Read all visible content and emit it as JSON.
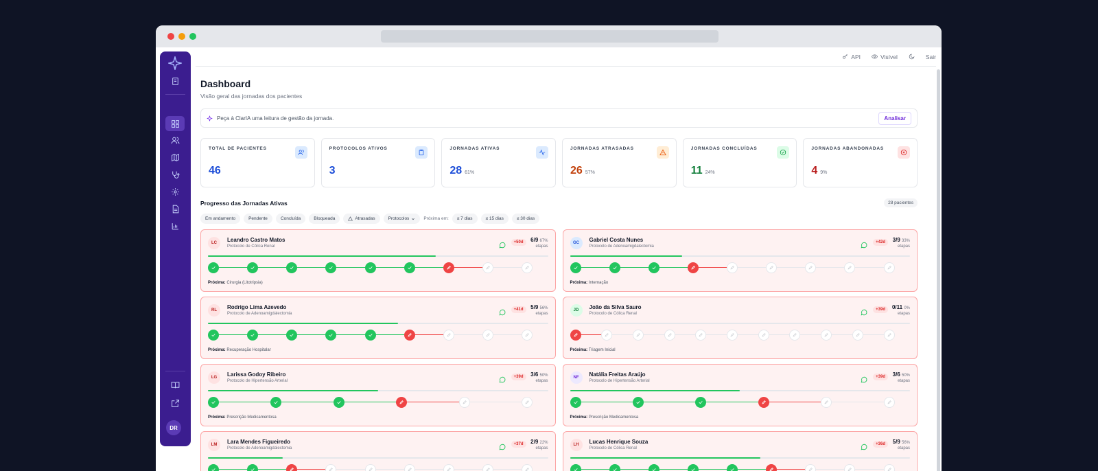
{
  "topnav": {
    "api": "API",
    "visibility": "Visível",
    "logout": "Sair"
  },
  "user": {
    "initials": "DR"
  },
  "header": {
    "title": "Dashboard",
    "subtitle": "Visão geral das jornadas dos pacientes"
  },
  "ai": {
    "prompt": "Peça à ClarIA uma leitura de gestão da jornada.",
    "button": "Analisar"
  },
  "stats": [
    {
      "label": "TOTAL DE PACIENTES",
      "value": "46",
      "pct": "",
      "color": "#1d4ed8",
      "icon": "users-icon"
    },
    {
      "label": "PROTOCOLOS ATIVOS",
      "value": "3",
      "pct": "",
      "color": "#1d4ed8",
      "icon": "clipboard-icon"
    },
    {
      "label": "JORNADAS ATIVAS",
      "value": "28",
      "pct": "61%",
      "color": "#1d4ed8",
      "icon": "activity-icon"
    },
    {
      "label": "JORNADAS ATRASADAS",
      "value": "26",
      "pct": "57%",
      "color": "#c2410c",
      "icon": "alert-icon"
    },
    {
      "label": "JORNADAS CONCLUÍDAS",
      "value": "11",
      "pct": "24%",
      "color": "#15803d",
      "icon": "check-circle-icon"
    },
    {
      "label": "JORNADAS ABANDONADAS",
      "value": "4",
      "pct": "9%",
      "color": "#b91c1c",
      "icon": "x-circle-icon"
    }
  ],
  "section": {
    "title": "Progresso das Jornadas Ativas",
    "count": "28 pacientes"
  },
  "filters": {
    "chips": [
      "Em andamento",
      "Pendente",
      "Concluída",
      "Bloqueada",
      "Atrasadas",
      "Protocolos"
    ],
    "next_label": "Próxima em:",
    "ranges": [
      "≤ 7 dias",
      "≤ 15 dias",
      "≤ 30 dias"
    ]
  },
  "next_prefix": "Próxima:",
  "steps_label": "etapas",
  "patients": [
    {
      "initials": "LC",
      "name": "Leandro Castro Matos",
      "protocol": "Protocolo de Cólica Renal",
      "days": "+50d",
      "steps": "6/9",
      "pct": "67%",
      "progress": 0.67,
      "next": "Cirurgia (Litotripsia)",
      "nodes": [
        "done",
        "done",
        "done",
        "done",
        "done",
        "done",
        "cur",
        "pend",
        "pend"
      ],
      "avatar_bg": "#fee2e2",
      "avatar_fg": "#b91c1c"
    },
    {
      "initials": "GC",
      "name": "Gabriel Costa Nunes",
      "protocol": "Protocolo de Adenoamigdalectomia",
      "days": "+42d",
      "steps": "3/9",
      "pct": "33%",
      "progress": 0.33,
      "next": "Internação",
      "nodes": [
        "done",
        "done",
        "done",
        "cur",
        "pend",
        "pend",
        "pend",
        "pend",
        "pend"
      ],
      "avatar_bg": "#dbeafe",
      "avatar_fg": "#1d4ed8"
    },
    {
      "initials": "RL",
      "name": "Rodrigo Lima Azevedo",
      "protocol": "Protocolo de Adenoamigdalectomia",
      "days": "+41d",
      "steps": "5/9",
      "pct": "56%",
      "progress": 0.56,
      "next": "Recuperação Hospitalar",
      "nodes": [
        "done",
        "done",
        "done",
        "done",
        "done",
        "cur",
        "pend",
        "pend",
        "pend"
      ],
      "avatar_bg": "#fee2e2",
      "avatar_fg": "#b91c1c"
    },
    {
      "initials": "JD",
      "name": "João da Silva Sauro",
      "protocol": "Protocolo de Cólica Renal",
      "days": "+39d",
      "steps": "0/11",
      "pct": "0%",
      "progress": 0.0,
      "next": "Triagem Inicial",
      "nodes": [
        "cur",
        "pend",
        "pend",
        "pend",
        "pend",
        "pend",
        "pend",
        "pend",
        "pend",
        "pend",
        "pend"
      ],
      "avatar_bg": "#dcfce7",
      "avatar_fg": "#15803d"
    },
    {
      "initials": "LG",
      "name": "Larissa Godoy Ribeiro",
      "protocol": "Protocolo de Hipertensão Arterial",
      "days": "+39d",
      "steps": "3/6",
      "pct": "50%",
      "progress": 0.5,
      "next": "Prescrição Medicamentosa",
      "nodes": [
        "done",
        "done",
        "done",
        "cur",
        "pend",
        "pend"
      ],
      "avatar_bg": "#fee2e2",
      "avatar_fg": "#b91c1c"
    },
    {
      "initials": "NF",
      "name": "Natália Freitas Araújo",
      "protocol": "Protocolo de Hipertensão Arterial",
      "days": "+39d",
      "steps": "3/6",
      "pct": "50%",
      "progress": 0.5,
      "next": "Prescrição Medicamentosa",
      "nodes": [
        "done",
        "done",
        "done",
        "cur",
        "pend",
        "pend"
      ],
      "avatar_bg": "#ede9fe",
      "avatar_fg": "#6d28d9"
    },
    {
      "initials": "LM",
      "name": "Lara Mendes Figueiredo",
      "protocol": "Protocolo de Adenoamigdalectomia",
      "days": "+37d",
      "steps": "2/9",
      "pct": "22%",
      "progress": 0.22,
      "next": "",
      "nodes": [
        "done",
        "done",
        "cur",
        "pend",
        "pend",
        "pend",
        "pend",
        "pend",
        "pend"
      ],
      "avatar_bg": "#fee2e2",
      "avatar_fg": "#b91c1c"
    },
    {
      "initials": "LH",
      "name": "Lucas Henrique Souza",
      "protocol": "Protocolo de Cólica Renal",
      "days": "+36d",
      "steps": "5/9",
      "pct": "56%",
      "progress": 0.56,
      "next": "",
      "nodes": [
        "done",
        "done",
        "done",
        "done",
        "done",
        "cur",
        "pend",
        "pend",
        "pend"
      ],
      "avatar_bg": "#fee2e2",
      "avatar_fg": "#b91c1c"
    }
  ]
}
